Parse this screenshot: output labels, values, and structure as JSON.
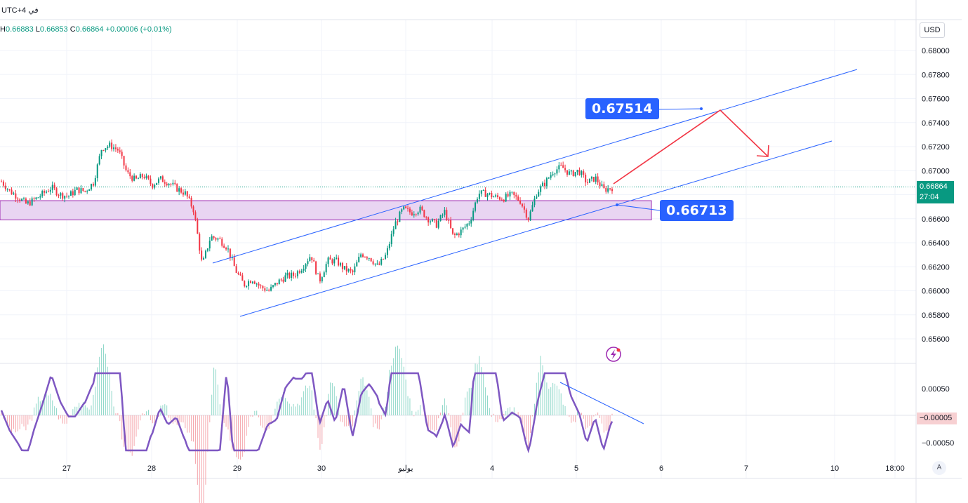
{
  "header": {
    "timezone": "UTC+4 في",
    "ohlc": {
      "h_label": "H",
      "h": "0.66883",
      "l_label": "L",
      "l": "0.66853",
      "c_label": "C",
      "c": "0.66864",
      "change": "+0.00006 (+0.01%)"
    }
  },
  "currency": "USD",
  "annotations": {
    "upper_target": "0.67514",
    "lower_target": "0.66713"
  },
  "current_price": {
    "value": "0.66864",
    "countdown": "27:04"
  },
  "indicator_current": {
    "value": "−0.00005"
  },
  "auto_button": "A",
  "colors": {
    "up": "#089981",
    "down": "#f23645",
    "channel": "#2962ff",
    "arrow": "#f23645",
    "zone_fill": "#e9d5f2",
    "zone_border": "#9c27b0",
    "oscillator": "#7e57c2"
  },
  "chart_data": {
    "type": "candlestick",
    "price_axis": {
      "min": 0.654,
      "max": 0.681,
      "ticks": [
        "0.68000",
        "0.67800",
        "0.67600",
        "0.67400",
        "0.67200",
        "0.67000",
        "0.66800",
        "0.66600",
        "0.66400",
        "0.66200",
        "0.66000",
        "0.65800",
        "0.65600"
      ]
    },
    "time_axis": {
      "ticks": [
        "27",
        "28",
        "29",
        "30",
        "يوليو",
        "4",
        "5",
        "6",
        "7",
        "10",
        "18:00"
      ]
    },
    "channel": {
      "upper": [
        [
          "28 16:00",
          0.6623
        ],
        [
          "10",
          0.6785
        ]
      ],
      "lower": [
        [
          "29 00:00",
          0.658
        ],
        [
          "10 00:00",
          0.6725
        ]
      ]
    },
    "zone": {
      "top": 0.6675,
      "bottom": 0.6659
    },
    "projection_arrow": [
      [
        "5 12:00",
        0.6686
      ],
      [
        "6 16:00",
        0.6751
      ],
      [
        "7 06:00",
        0.6712
      ]
    ],
    "price_series": [
      0.6691,
      0.6683,
      0.6678,
      0.6672,
      0.6676,
      0.6681,
      0.6686,
      0.668,
      0.6679,
      0.6684,
      0.6683,
      0.669,
      0.6719,
      0.6721,
      0.6717,
      0.6698,
      0.6692,
      0.6696,
      0.6688,
      0.6693,
      0.669,
      0.6685,
      0.6681,
      0.6667,
      0.6621,
      0.6645,
      0.6643,
      0.6636,
      0.6617,
      0.6605,
      0.661,
      0.6603,
      0.66,
      0.6607,
      0.6612,
      0.6613,
      0.662,
      0.663,
      0.6608,
      0.6625,
      0.6625,
      0.6618,
      0.6615,
      0.6631,
      0.6628,
      0.662,
      0.663,
      0.6655,
      0.6668,
      0.6665,
      0.6668,
      0.666,
      0.6655,
      0.6666,
      0.6645,
      0.665,
      0.6658,
      0.6681,
      0.6681,
      0.6678,
      0.6677,
      0.668,
      0.6675,
      0.666,
      0.6682,
      0.669,
      0.67,
      0.6703,
      0.6697,
      0.67,
      0.669,
      0.6694,
      0.6684,
      0.6686
    ],
    "oscillator": {
      "ticks": [
        "0.00050",
        "−0.00005",
        "−0.00050"
      ],
      "min": -0.0007,
      "max": 0.0009
    }
  }
}
